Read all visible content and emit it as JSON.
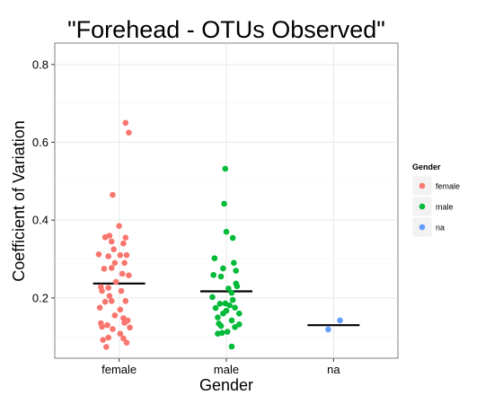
{
  "chart_data": {
    "type": "scatter",
    "title": "\"Forehead - OTUs Observed\"",
    "xlabel": "Gender",
    "ylabel": "Coefficient of Variation",
    "categories": [
      "female",
      "male",
      "na"
    ],
    "ylim": [
      0.045,
      0.855
    ],
    "yticks": [
      0.2,
      0.4,
      0.6,
      0.8
    ],
    "yticklabels": [
      "0.2",
      "0.4",
      "0.6",
      "0.8"
    ],
    "grid": true,
    "legend": {
      "title": "Gender",
      "position": "right"
    },
    "series": [
      {
        "name": "female",
        "color": "#F8766D",
        "mean": 0.237,
        "points": [
          {
            "x": 0.94,
            "y": 0.465
          },
          {
            "x": 1.06,
            "y": 0.65
          },
          {
            "x": 1.09,
            "y": 0.625
          },
          {
            "x": 1.0,
            "y": 0.385
          },
          {
            "x": 0.91,
            "y": 0.36
          },
          {
            "x": 0.87,
            "y": 0.356
          },
          {
            "x": 1.06,
            "y": 0.355
          },
          {
            "x": 0.93,
            "y": 0.345
          },
          {
            "x": 1.04,
            "y": 0.34
          },
          {
            "x": 0.95,
            "y": 0.325
          },
          {
            "x": 0.81,
            "y": 0.312
          },
          {
            "x": 0.9,
            "y": 0.307
          },
          {
            "x": 1.01,
            "y": 0.31
          },
          {
            "x": 1.07,
            "y": 0.31
          },
          {
            "x": 0.96,
            "y": 0.29
          },
          {
            "x": 1.05,
            "y": 0.29
          },
          {
            "x": 0.86,
            "y": 0.275
          },
          {
            "x": 0.93,
            "y": 0.277
          },
          {
            "x": 1.03,
            "y": 0.262
          },
          {
            "x": 1.09,
            "y": 0.258
          },
          {
            "x": 0.97,
            "y": 0.241
          },
          {
            "x": 0.83,
            "y": 0.228
          },
          {
            "x": 0.9,
            "y": 0.226
          },
          {
            "x": 0.84,
            "y": 0.218
          },
          {
            "x": 0.91,
            "y": 0.205
          },
          {
            "x": 1.02,
            "y": 0.218
          },
          {
            "x": 0.93,
            "y": 0.192
          },
          {
            "x": 1.06,
            "y": 0.192
          },
          {
            "x": 0.87,
            "y": 0.19
          },
          {
            "x": 0.82,
            "y": 0.175
          },
          {
            "x": 1.01,
            "y": 0.17
          },
          {
            "x": 0.96,
            "y": 0.155
          },
          {
            "x": 1.04,
            "y": 0.148
          },
          {
            "x": 1.08,
            "y": 0.142
          },
          {
            "x": 1.05,
            "y": 0.136
          },
          {
            "x": 0.83,
            "y": 0.135
          },
          {
            "x": 0.89,
            "y": 0.13
          },
          {
            "x": 0.84,
            "y": 0.126
          },
          {
            "x": 1.1,
            "y": 0.124
          },
          {
            "x": 0.94,
            "y": 0.12
          },
          {
            "x": 1.01,
            "y": 0.108
          },
          {
            "x": 0.9,
            "y": 0.098
          },
          {
            "x": 1.04,
            "y": 0.096
          },
          {
            "x": 0.85,
            "y": 0.092
          },
          {
            "x": 1.07,
            "y": 0.085
          },
          {
            "x": 0.88,
            "y": 0.074
          }
        ]
      },
      {
        "name": "male",
        "color": "#00BA38",
        "mean": 0.217,
        "points": [
          {
            "x": 1.99,
            "y": 0.532
          },
          {
            "x": 1.98,
            "y": 0.442
          },
          {
            "x": 2.0,
            "y": 0.37
          },
          {
            "x": 2.06,
            "y": 0.354
          },
          {
            "x": 1.89,
            "y": 0.302
          },
          {
            "x": 2.07,
            "y": 0.29
          },
          {
            "x": 1.97,
            "y": 0.276
          },
          {
            "x": 2.09,
            "y": 0.27
          },
          {
            "x": 1.88,
            "y": 0.259
          },
          {
            "x": 1.95,
            "y": 0.255
          },
          {
            "x": 2.09,
            "y": 0.237
          },
          {
            "x": 2.1,
            "y": 0.23
          },
          {
            "x": 2.02,
            "y": 0.224
          },
          {
            "x": 2.05,
            "y": 0.213
          },
          {
            "x": 1.87,
            "y": 0.202
          },
          {
            "x": 2.06,
            "y": 0.195
          },
          {
            "x": 1.99,
            "y": 0.186
          },
          {
            "x": 1.94,
            "y": 0.185
          },
          {
            "x": 2.03,
            "y": 0.181
          },
          {
            "x": 2.08,
            "y": 0.175
          },
          {
            "x": 1.9,
            "y": 0.174
          },
          {
            "x": 2.0,
            "y": 0.167
          },
          {
            "x": 1.97,
            "y": 0.16
          },
          {
            "x": 2.12,
            "y": 0.16
          },
          {
            "x": 1.92,
            "y": 0.15
          },
          {
            "x": 2.05,
            "y": 0.142
          },
          {
            "x": 1.93,
            "y": 0.134
          },
          {
            "x": 2.12,
            "y": 0.132
          },
          {
            "x": 1.95,
            "y": 0.128
          },
          {
            "x": 2.08,
            "y": 0.125
          },
          {
            "x": 2.01,
            "y": 0.113
          },
          {
            "x": 1.96,
            "y": 0.11
          },
          {
            "x": 1.92,
            "y": 0.108
          },
          {
            "x": 2.05,
            "y": 0.075
          }
        ]
      },
      {
        "name": "na",
        "color": "#619CFF",
        "mean": 0.13,
        "points": [
          {
            "x": 3.06,
            "y": 0.142
          },
          {
            "x": 2.95,
            "y": 0.119
          }
        ]
      }
    ]
  }
}
